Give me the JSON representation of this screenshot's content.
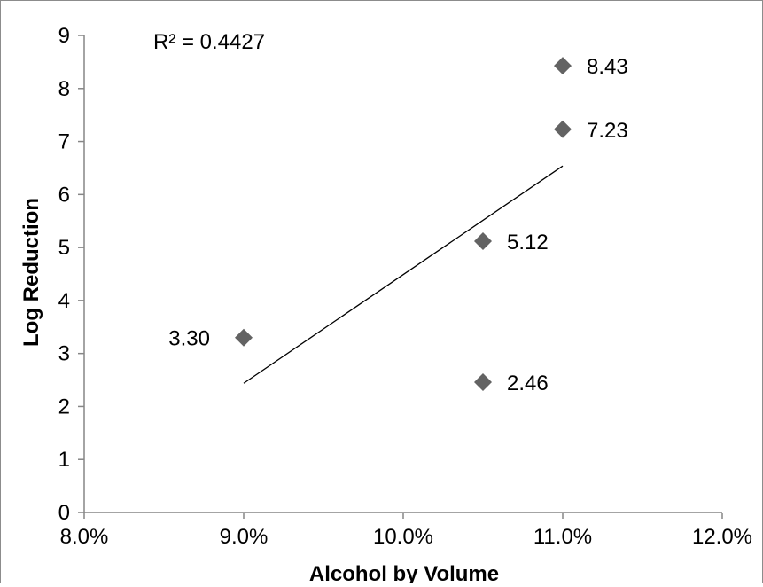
{
  "chart_data": {
    "type": "scatter",
    "xlabel": "Alcohol by Volume",
    "ylabel": "Log Reduction",
    "xlim": [
      0.08,
      0.12
    ],
    "ylim": [
      0,
      9
    ],
    "x_ticks": [
      0.08,
      0.09,
      0.1,
      0.11,
      0.12
    ],
    "x_tick_labels": [
      "8.0%",
      "9.0%",
      "10.0%",
      "11.0%",
      "12.0%"
    ],
    "y_ticks": [
      0,
      1,
      2,
      3,
      4,
      5,
      6,
      7,
      8,
      9
    ],
    "y_tick_labels": [
      "0",
      "1",
      "2",
      "3",
      "4",
      "5",
      "6",
      "7",
      "8",
      "9"
    ],
    "points": [
      {
        "x": 0.09,
        "y": 3.3,
        "label": "3.30"
      },
      {
        "x": 0.105,
        "y": 5.12,
        "label": "5.12"
      },
      {
        "x": 0.105,
        "y": 2.46,
        "label": "2.46"
      },
      {
        "x": 0.11,
        "y": 7.23,
        "label": "7.23"
      },
      {
        "x": 0.11,
        "y": 8.43,
        "label": "8.43"
      }
    ],
    "trendline": {
      "type": "linear",
      "x_range": [
        0.09,
        0.11
      ]
    },
    "annotation": "R² = 0.4427",
    "grid": false,
    "legend": "none",
    "marker": "diamond",
    "marker_color": "#636363",
    "line_color": "#000000"
  }
}
